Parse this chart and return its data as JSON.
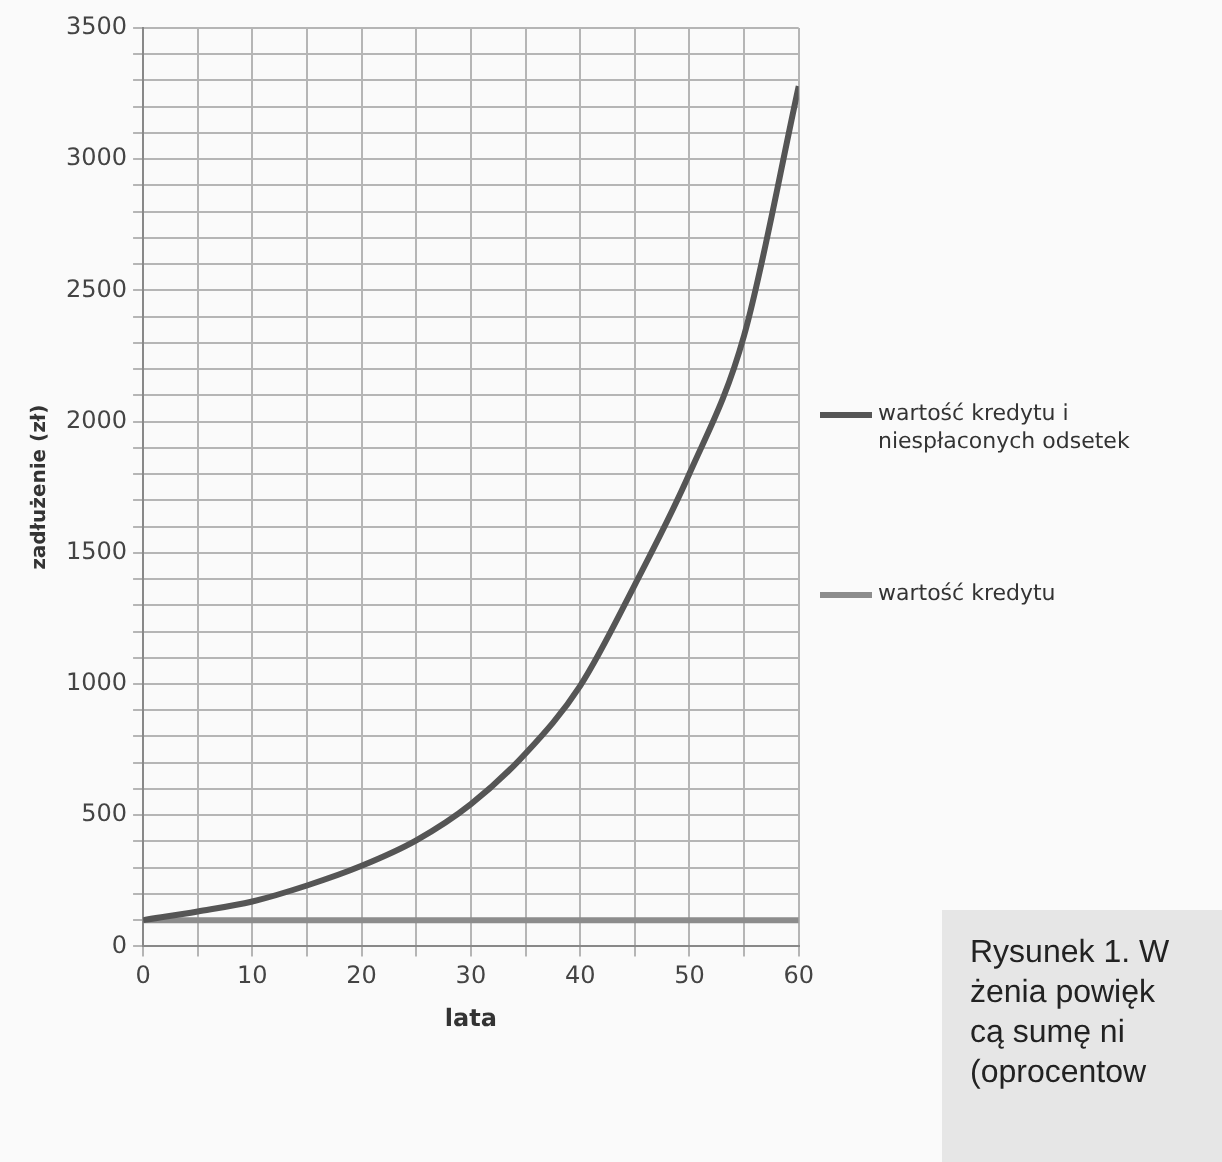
{
  "chart_data": {
    "type": "line",
    "xlabel": "lata",
    "ylabel": "zadłużenie (zł)",
    "x": [
      0,
      5,
      10,
      15,
      20,
      25,
      30,
      35,
      40,
      45,
      50,
      55,
      60
    ],
    "series": [
      {
        "name": "wartość kredytu i niespłaconych odsetek",
        "color": "#555555",
        "values": [
          100,
          133,
          171,
          232,
          307,
          404,
          542,
          735,
          993,
          1378,
          1802,
          2328,
          3278
        ]
      },
      {
        "name": "wartość kredytu",
        "color": "#8c8c8c",
        "values": [
          100,
          100,
          100,
          100,
          100,
          100,
          100,
          100,
          100,
          100,
          100,
          100,
          100
        ]
      }
    ],
    "xlim": [
      0,
      60
    ],
    "xticks": [
      0,
      {
        "value": 5,
        "label": null
      },
      10,
      {
        "value": 15,
        "label": null
      },
      20,
      {
        "value": 25,
        "label": null
      },
      30,
      {
        "value": 35,
        "label": null
      },
      40,
      {
        "value": 45,
        "label": null
      },
      50,
      {
        "value": 55,
        "label": null
      },
      60
    ],
    "ylim": [
      0,
      3500
    ],
    "yticks": [
      0,
      {
        "value": 100,
        "label": null
      },
      {
        "value": 200,
        "label": null
      },
      {
        "value": 300,
        "label": null
      },
      {
        "value": 400,
        "label": null
      },
      500,
      {
        "value": 600,
        "label": null
      },
      {
        "value": 700,
        "label": null
      },
      {
        "value": 800,
        "label": null
      },
      {
        "value": 900,
        "label": null
      },
      1000,
      {
        "value": 1100,
        "label": null
      },
      {
        "value": 1200,
        "label": null
      },
      {
        "value": 1300,
        "label": null
      },
      {
        "value": 1400,
        "label": null
      },
      1500,
      {
        "value": 1600,
        "label": null
      },
      {
        "value": 1700,
        "label": null
      },
      {
        "value": 1800,
        "label": null
      },
      {
        "value": 1900,
        "label": null
      },
      2000,
      {
        "value": 2100,
        "label": null
      },
      {
        "value": 2200,
        "label": null
      },
      {
        "value": 2300,
        "label": null
      },
      {
        "value": 2400,
        "label": null
      },
      2500,
      {
        "value": 2600,
        "label": null
      },
      {
        "value": 2700,
        "label": null
      },
      {
        "value": 2800,
        "label": null
      },
      {
        "value": 2900,
        "label": null
      },
      3000,
      {
        "value": 3100,
        "label": null
      },
      {
        "value": 3200,
        "label": null
      },
      {
        "value": 3300,
        "label": null
      },
      {
        "value": 3400,
        "label": null
      },
      3500
    ],
    "grid": true,
    "legend": "right",
    "marker": "none",
    "line_style": "solid",
    "annotations": [
      "Rysunek 1. W\nżenia powięk\ncą sumę ni\n(oprocentow"
    ]
  }
}
